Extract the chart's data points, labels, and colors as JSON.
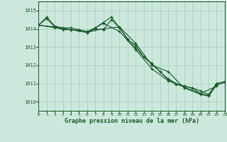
{
  "title": "Graphe pression niveau de la mer (hPa)",
  "bg_color": "#cce8dd",
  "grid_color": "#aaccbb",
  "line_color": "#1a5c2a",
  "xlim": [
    0,
    23
  ],
  "ylim": [
    1009.5,
    1015.5
  ],
  "yticks": [
    1010,
    1011,
    1012,
    1013,
    1014,
    1015
  ],
  "xticks": [
    0,
    1,
    2,
    3,
    4,
    5,
    6,
    7,
    8,
    9,
    10,
    11,
    12,
    13,
    14,
    15,
    16,
    17,
    18,
    19,
    20,
    21,
    22,
    23
  ],
  "series": [
    {
      "x": [
        0,
        1,
        2,
        3,
        4,
        5,
        6,
        7,
        8,
        9,
        10,
        11,
        12,
        13,
        14,
        15,
        16,
        17,
        18,
        19,
        20,
        21,
        22,
        23
      ],
      "y": [
        1014.2,
        1014.65,
        1014.15,
        1014.05,
        1014.05,
        1013.95,
        1013.85,
        1014.05,
        1014.35,
        1014.65,
        1014.05,
        1013.45,
        1012.95,
        1012.45,
        1012.05,
        1011.65,
        1011.2,
        1010.95,
        1010.85,
        1010.75,
        1010.6,
        1010.4,
        1011.0,
        1011.1
      ]
    },
    {
      "x": [
        0,
        1,
        2,
        3,
        4,
        5,
        6,
        7,
        8,
        9,
        10,
        11,
        12,
        13,
        14,
        15,
        16,
        17,
        18,
        19,
        20,
        21,
        22,
        23
      ],
      "y": [
        1014.2,
        1014.55,
        1014.1,
        1013.95,
        1013.95,
        1013.9,
        1013.8,
        1014.0,
        1013.95,
        1014.5,
        1014.05,
        1013.4,
        1013.1,
        1012.45,
        1012.1,
        1011.65,
        1011.25,
        1011.0,
        1010.85,
        1010.75,
        1010.45,
        1010.35,
        1011.0,
        1011.1
      ]
    },
    {
      "x": [
        0,
        2,
        4,
        6,
        8,
        10,
        12,
        14,
        16,
        18,
        20,
        22
      ],
      "y": [
        1014.2,
        1014.1,
        1013.95,
        1013.8,
        1014.3,
        1013.85,
        1012.85,
        1011.8,
        1011.15,
        1010.8,
        1010.45,
        1010.85
      ]
    },
    {
      "x": [
        0,
        2,
        4,
        6,
        8,
        10,
        12,
        14,
        16,
        18,
        20,
        21,
        22,
        23
      ],
      "y": [
        1014.2,
        1014.05,
        1013.95,
        1013.8,
        1014.0,
        1014.1,
        1013.2,
        1012.0,
        1011.65,
        1010.75,
        1010.4,
        1010.3,
        1010.9,
        1011.05
      ]
    }
  ]
}
